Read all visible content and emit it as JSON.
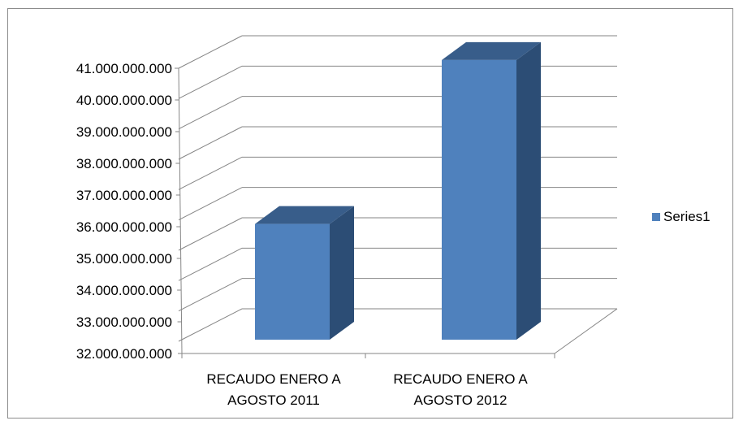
{
  "chart_data": {
    "type": "bar",
    "categories": [
      "RECAUDO ENERO A AGOSTO 2011",
      "RECAUDO ENERO A AGOSTO 2012"
    ],
    "category_lines": [
      [
        "RECAUDO ENERO A",
        "AGOSTO 2011"
      ],
      [
        "RECAUDO ENERO A",
        "AGOSTO 2012"
      ]
    ],
    "series": [
      {
        "name": "Series1",
        "values": [
          35600000000,
          40700000000
        ],
        "color": "#4f81bd"
      }
    ],
    "ylim": [
      32000000000,
      41000000000
    ],
    "yticks": [
      32000000000,
      33000000000,
      34000000000,
      35000000000,
      36000000000,
      37000000000,
      38000000000,
      39000000000,
      40000000000,
      41000000000
    ],
    "ytick_labels": [
      "32.000.000.000",
      "33.000.000.000",
      "34.000.000.000",
      "35.000.000.000",
      "36.000.000.000",
      "37.000.000.000",
      "38.000.000.000",
      "39.000.000.000",
      "40.000.000.000",
      "41.000.000.000"
    ],
    "grid": true,
    "legend": "right",
    "style": "3d-column",
    "colors": {
      "front": "#4f81bd",
      "side": "#2c4d75",
      "top": "#385d8a",
      "grid": "#868686"
    }
  }
}
